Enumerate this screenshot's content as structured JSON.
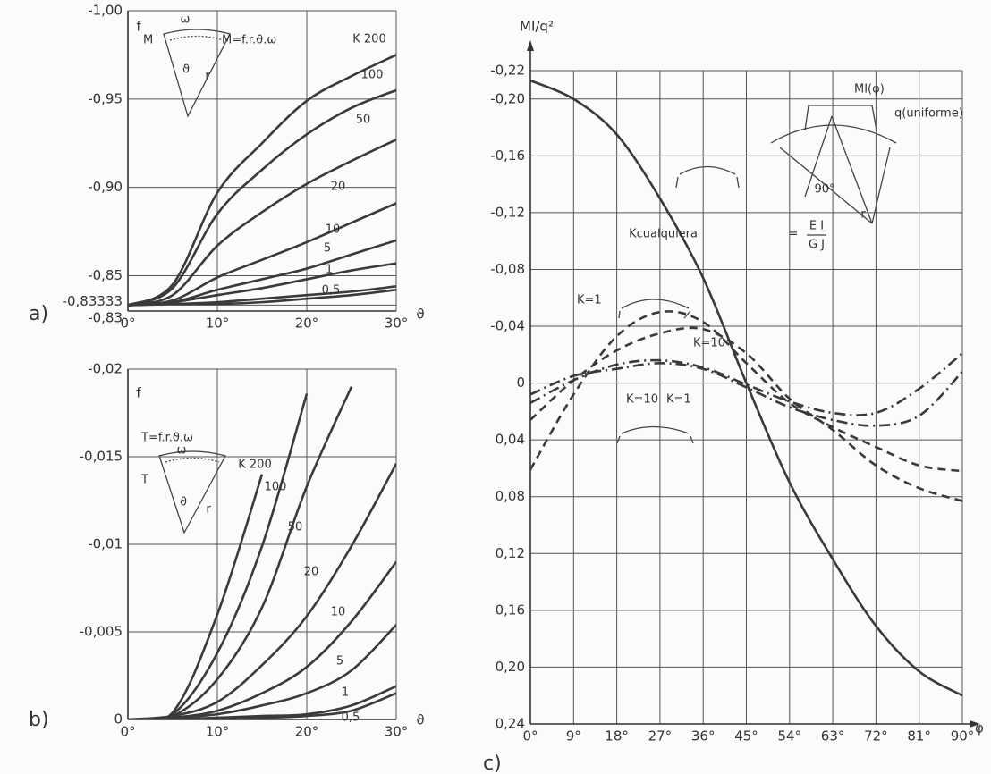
{
  "chart_data": [
    {
      "type": "line",
      "panel_label": "a)",
      "y_label": "f",
      "x_label": "ϑ",
      "x": [
        0,
        5,
        10,
        15,
        20,
        25,
        30
      ],
      "xlim": [
        0,
        30
      ],
      "xticks": [
        {
          "value": 0,
          "label": "0°"
        },
        {
          "value": 10,
          "label": "10°"
        },
        {
          "value": 20,
          "label": "20°"
        },
        {
          "value": 30,
          "label": "30°"
        }
      ],
      "ylim": [
        -0.83,
        -1.0
      ],
      "yticks": [
        {
          "value": -0.83,
          "label": "-0,83"
        },
        {
          "value": -0.83333,
          "label": "-0,83333"
        },
        {
          "value": -0.85,
          "label": "-0,85"
        },
        {
          "value": -0.9,
          "label": "-0,90"
        },
        {
          "value": -0.95,
          "label": "-0,95"
        },
        {
          "value": -1.0,
          "label": "-1,00"
        }
      ],
      "grid": true,
      "annotations": [
        "M",
        "ω",
        "M=f.r.ϑ.ω",
        "ϑ",
        "r"
      ],
      "series": [
        {
          "name": "K 200",
          "color": "#3a3a3a",
          "values": [
            -0.8333,
            -0.845,
            -0.897,
            -0.925,
            -0.949,
            -0.963,
            -0.975
          ]
        },
        {
          "name": "100",
          "color": "#3a3a3a",
          "values": [
            -0.8333,
            -0.843,
            -0.885,
            -0.91,
            -0.93,
            -0.945,
            -0.955
          ]
        },
        {
          "name": "50",
          "color": "#3a3a3a",
          "values": [
            -0.8333,
            -0.839,
            -0.867,
            -0.886,
            -0.902,
            -0.915,
            -0.927
          ]
        },
        {
          "name": "20",
          "color": "#3a3a3a",
          "values": [
            -0.8333,
            -0.836,
            -0.849,
            -0.859,
            -0.869,
            -0.88,
            -0.891
          ]
        },
        {
          "name": "10",
          "color": "#3a3a3a",
          "values": [
            -0.8333,
            -0.835,
            -0.842,
            -0.848,
            -0.854,
            -0.862,
            -0.87
          ]
        },
        {
          "name": "5",
          "color": "#3a3a3a",
          "values": [
            -0.8333,
            -0.835,
            -0.839,
            -0.843,
            -0.848,
            -0.853,
            -0.857
          ]
        },
        {
          "name": "1",
          "color": "#3a3a3a",
          "values": [
            -0.8333,
            -0.834,
            -0.835,
            -0.837,
            -0.839,
            -0.841,
            -0.844
          ]
        },
        {
          "name": "0,5",
          "color": "#3a3a3a",
          "values": [
            -0.8333,
            -0.834,
            -0.834,
            -0.835,
            -0.837,
            -0.839,
            -0.842
          ]
        }
      ]
    },
    {
      "type": "line",
      "panel_label": "b)",
      "y_label": "f",
      "x_label": "ϑ",
      "x": [
        0,
        5,
        10,
        15,
        20,
        25,
        30
      ],
      "xlim": [
        0,
        30
      ],
      "xticks": [
        {
          "value": 0,
          "label": "0°"
        },
        {
          "value": 10,
          "label": "10°"
        },
        {
          "value": 20,
          "label": "20°"
        },
        {
          "value": 30,
          "label": "30°"
        }
      ],
      "ylim": [
        0,
        -0.02
      ],
      "yticks": [
        0,
        {
          "value": -0.005,
          "label": "-0,005"
        },
        {
          "value": -0.01,
          "label": "-0,01"
        },
        {
          "value": -0.015,
          "label": "-0,015"
        },
        {
          "value": -0.02,
          "label": "-0,02"
        }
      ],
      "grid": true,
      "annotations": [
        "T=f.r.ϑ.ω",
        "ω",
        "T",
        "ϑ",
        "r"
      ],
      "series": [
        {
          "name": "K 200",
          "color": "#3a3a3a",
          "values": [
            0,
            -0.0004,
            -0.006,
            -0.014,
            null,
            null,
            null
          ]
        },
        {
          "name": "100",
          "color": "#3a3a3a",
          "values": [
            0,
            -0.0003,
            -0.0038,
            -0.0099,
            -0.0186,
            null,
            null
          ]
        },
        {
          "name": "50",
          "color": "#3a3a3a",
          "values": [
            0,
            -0.0002,
            -0.0023,
            -0.0064,
            -0.0133,
            -0.019,
            null
          ]
        },
        {
          "name": "20",
          "color": "#3a3a3a",
          "values": [
            0,
            -0.0002,
            -0.001,
            -0.0031,
            -0.0059,
            -0.0099,
            -0.0146
          ]
        },
        {
          "name": "10",
          "color": "#3a3a3a",
          "values": [
            0,
            -0.0001,
            -0.0005,
            -0.0015,
            -0.003,
            -0.0056,
            -0.009
          ]
        },
        {
          "name": "5",
          "color": "#3a3a3a",
          "values": [
            0,
            -0.0001,
            -0.0003,
            -0.0008,
            -0.0015,
            -0.0028,
            -0.0054
          ]
        },
        {
          "name": "1",
          "color": "#3a3a3a",
          "values": [
            0,
            0,
            -0.0001,
            -0.0002,
            -0.0003,
            -0.0008,
            -0.0019
          ]
        },
        {
          "name": "0,5",
          "color": "#3a3a3a",
          "values": [
            0,
            0,
            -0.0001,
            -0.0001,
            -0.0002,
            -0.0005,
            -0.0015
          ]
        }
      ]
    },
    {
      "type": "line",
      "panel_label": "c)",
      "y_label": "MI/q²",
      "x_label": "φ",
      "x": [
        0,
        9,
        18,
        27,
        36,
        45,
        54,
        63,
        72,
        81,
        90
      ],
      "xlim": [
        0,
        90
      ],
      "xticks": [
        {
          "value": 0,
          "label": "0°"
        },
        {
          "value": 9,
          "label": "9°"
        },
        {
          "value": 18,
          "label": "18°"
        },
        {
          "value": 27,
          "label": "27°"
        },
        {
          "value": 36,
          "label": "36°"
        },
        {
          "value": 45,
          "label": "45°"
        },
        {
          "value": 54,
          "label": "54°"
        },
        {
          "value": 63,
          "label": "63°"
        },
        {
          "value": 72,
          "label": "72°"
        },
        {
          "value": 81,
          "label": "81°"
        },
        {
          "value": 90,
          "label": "90°"
        }
      ],
      "ylim": [
        0.24,
        -0.22
      ],
      "yticks": [
        {
          "value": -0.22,
          "label": "-0,22"
        },
        {
          "value": -0.2,
          "label": "-0,20"
        },
        {
          "value": -0.16,
          "label": "-0,16"
        },
        {
          "value": -0.12,
          "label": "-0,12"
        },
        {
          "value": -0.08,
          "label": "-0,08"
        },
        {
          "value": -0.04,
          "label": "-0,04"
        },
        0,
        {
          "value": 0.04,
          "label": "0,04"
        },
        {
          "value": 0.08,
          "label": "0,08"
        },
        {
          "value": 0.12,
          "label": "0,12"
        },
        {
          "value": 0.16,
          "label": "0,16"
        },
        {
          "value": 0.2,
          "label": "0,20"
        },
        {
          "value": 0.24,
          "label": "0,24"
        }
      ],
      "grid": true,
      "annotations": [
        "MI(φ)",
        "q(uniforme)",
        "90°",
        "r",
        "=",
        "E I",
        "G J"
      ],
      "series": [
        {
          "name": "Kcualquiera",
          "color": "#3a3a3a",
          "dash": "solid",
          "values": [
            -0.213,
            -0.2,
            -0.175,
            -0.13,
            -0.074,
            0,
            0.07,
            0.124,
            0.171,
            0.203,
            0.22
          ]
        },
        {
          "name": "K=1",
          "color": "#3a3a3a",
          "dash": "dashed",
          "values": [
            0.061,
            0.008,
            -0.033,
            -0.05,
            -0.043,
            -0.014,
            0.014,
            0.031,
            0.045,
            0.058,
            0.062
          ]
        },
        {
          "name": "K=10",
          "color": "#3a3a3a",
          "dash": "dashed",
          "values": [
            0.026,
            -0.002,
            -0.023,
            -0.035,
            -0.038,
            -0.021,
            0.011,
            0.033,
            0.058,
            0.074,
            0.083
          ]
        },
        {
          "name": "K=10",
          "color": "#3a3a3a",
          "dash": "dashdot",
          "values": [
            0.014,
            -0.002,
            -0.013,
            -0.016,
            -0.011,
            0.001,
            0.013,
            0.021,
            0.021,
            0.004,
            -0.021
          ]
        },
        {
          "name": "K=1",
          "color": "#3a3a3a",
          "dash": "dashdot",
          "values": [
            0.008,
            -0.005,
            -0.01,
            -0.014,
            -0.01,
            0.003,
            0.017,
            0.026,
            0.03,
            0.023,
            -0.008
          ]
        }
      ]
    }
  ]
}
